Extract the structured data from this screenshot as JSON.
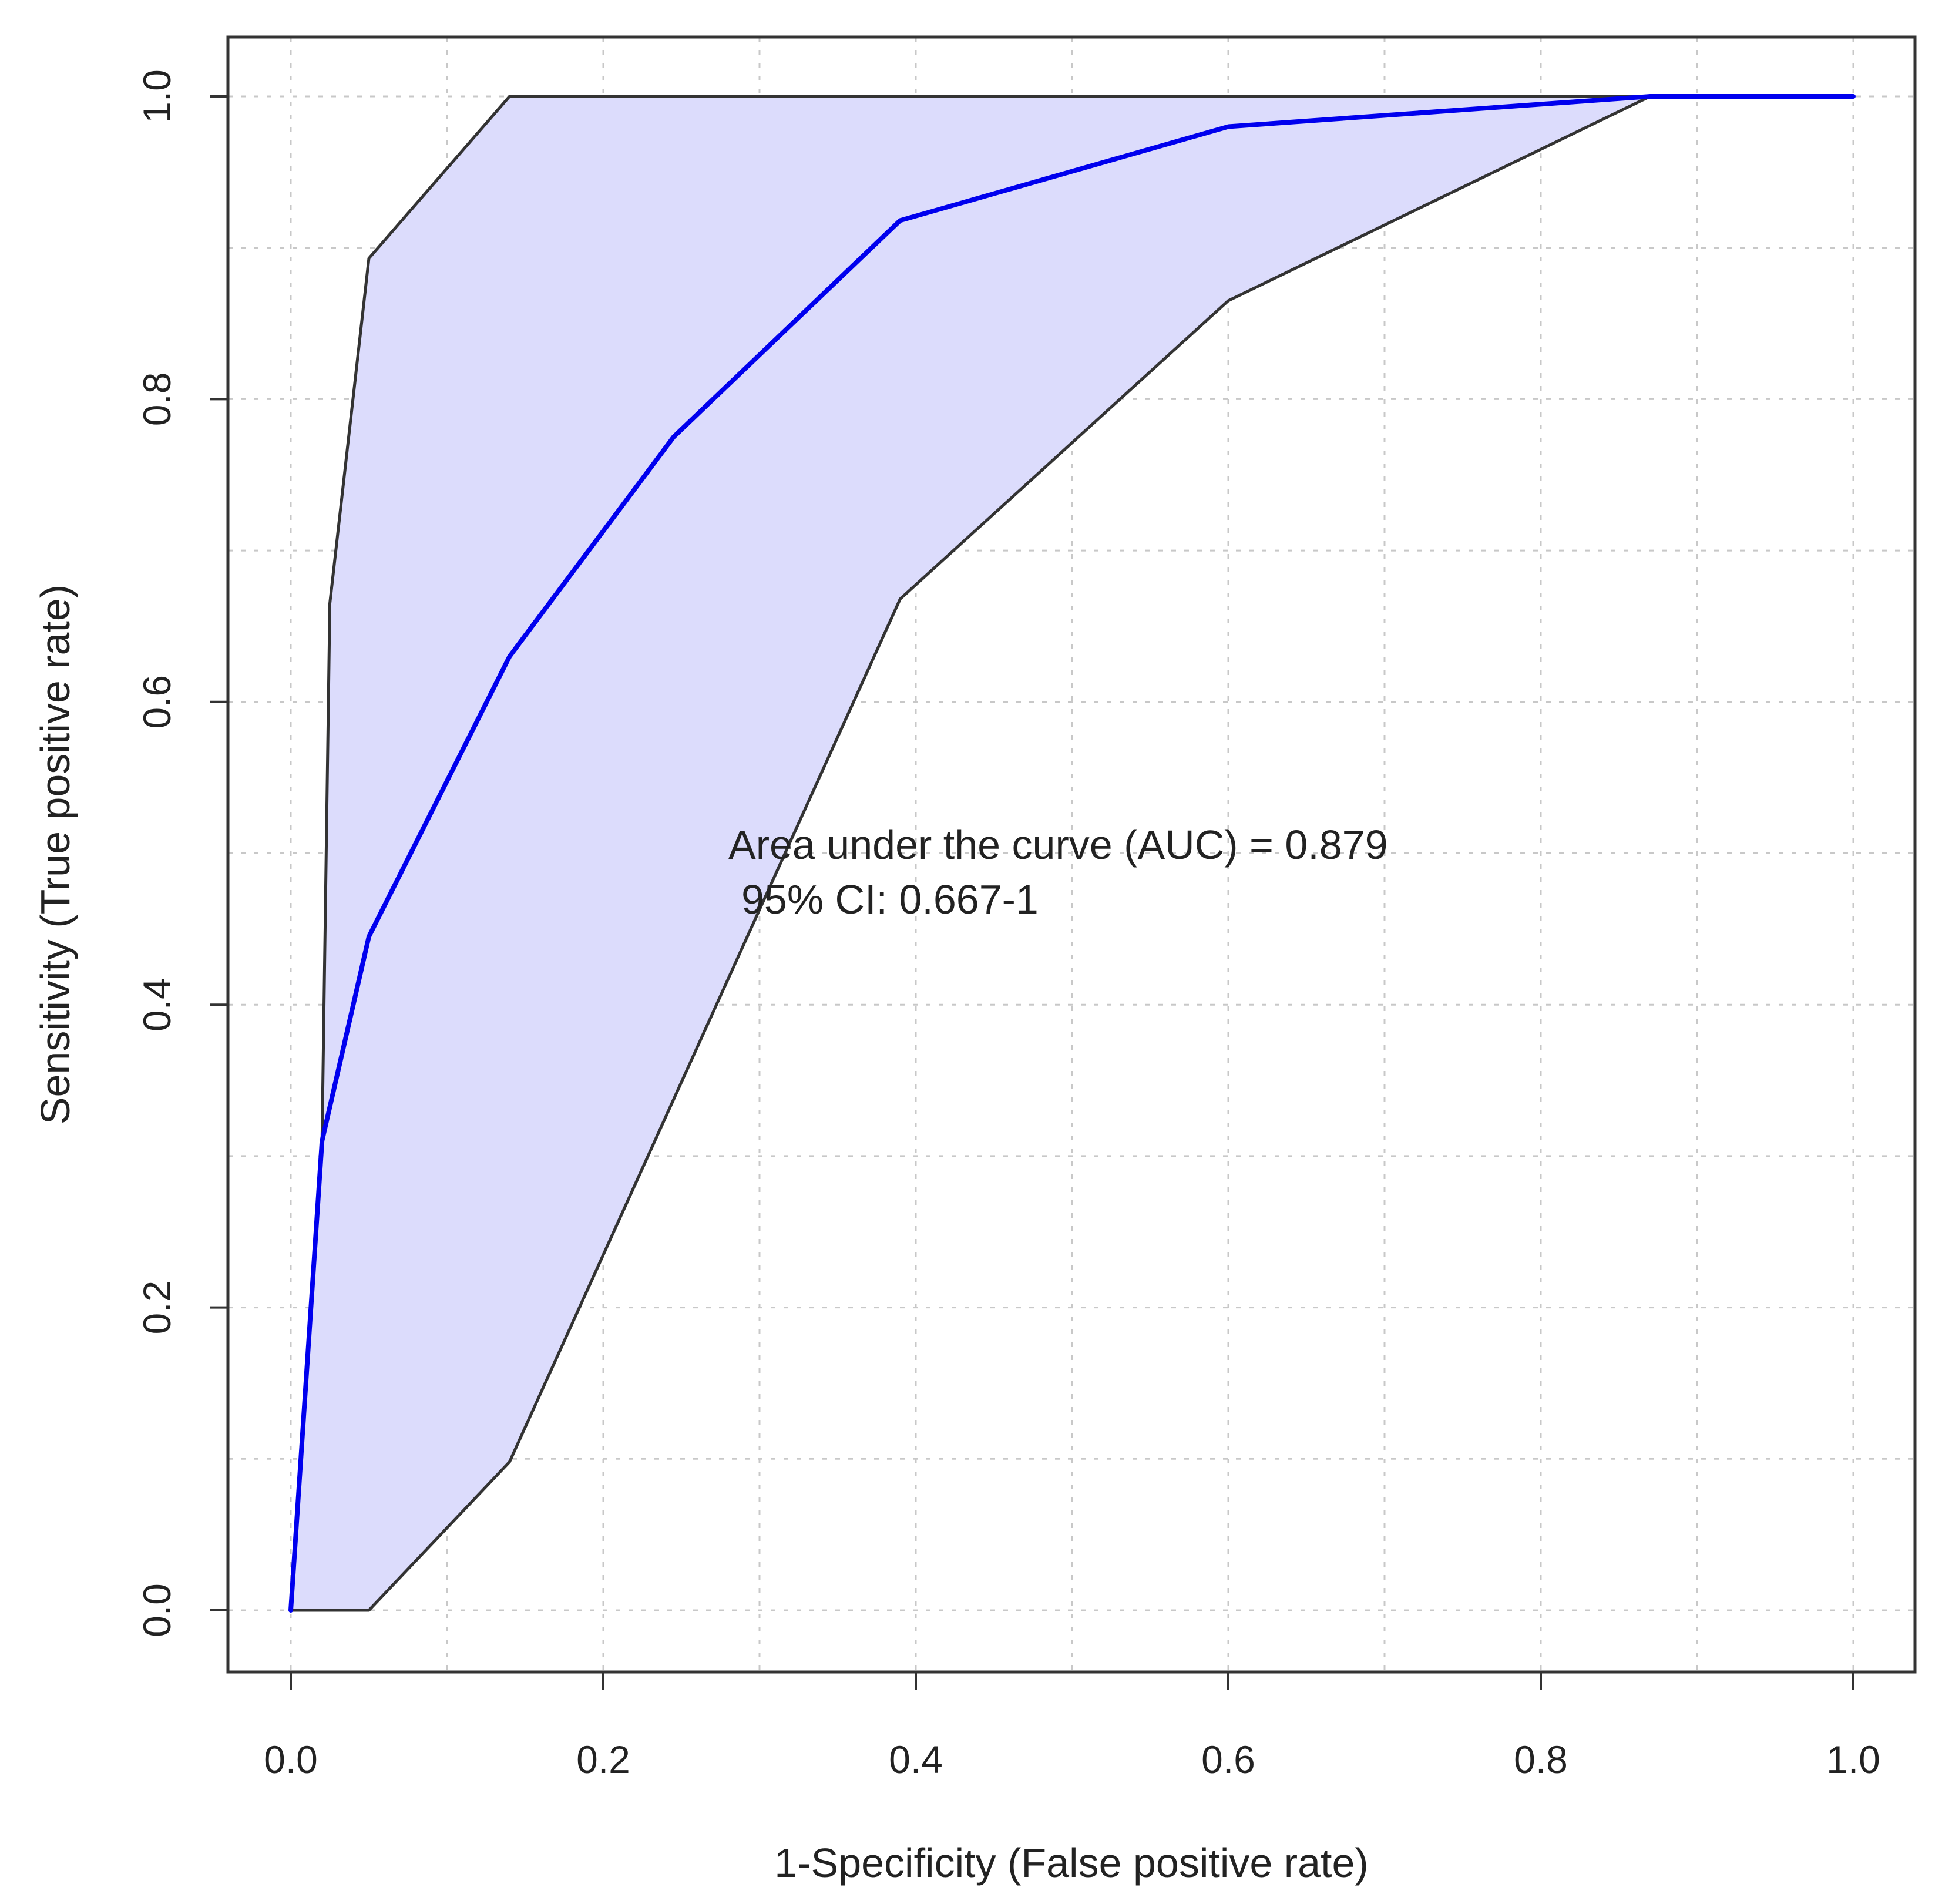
{
  "chart_data": {
    "type": "line",
    "title": "",
    "xlabel": "1-Specificity (False positive rate)",
    "ylabel": "Sensitivity (True positive rate)",
    "xlim": [
      0.0,
      1.0
    ],
    "ylim": [
      0.0,
      1.0
    ],
    "xticks": [
      "0.0",
      "0.2",
      "0.4",
      "0.6",
      "0.8",
      "1.0"
    ],
    "yticks": [
      "0.0",
      "0.2",
      "0.4",
      "0.6",
      "0.8",
      "1.0"
    ],
    "grid": true,
    "series": [
      {
        "role": "roc-curve",
        "color": "#0000ee",
        "points": [
          [
            0.0,
            0.0
          ],
          [
            0.02,
            0.31
          ],
          [
            0.05,
            0.445
          ],
          [
            0.14,
            0.63
          ],
          [
            0.245,
            0.775
          ],
          [
            0.39,
            0.918
          ],
          [
            0.6,
            0.98
          ],
          [
            0.87,
            1.0
          ],
          [
            1.0,
            1.0
          ]
        ]
      },
      {
        "role": "ci-upper",
        "color": "#333333",
        "points": [
          [
            0.0,
            0.0
          ],
          [
            0.02,
            0.31
          ],
          [
            0.025,
            0.665
          ],
          [
            0.05,
            0.893
          ],
          [
            0.14,
            1.0
          ],
          [
            1.0,
            1.0
          ]
        ]
      },
      {
        "role": "ci-lower",
        "color": "#333333",
        "points": [
          [
            0.0,
            0.0
          ],
          [
            0.05,
            0.0
          ],
          [
            0.14,
            0.098
          ],
          [
            0.39,
            0.668
          ],
          [
            0.6,
            0.865
          ],
          [
            0.87,
            1.0
          ],
          [
            1.0,
            1.0
          ]
        ]
      }
    ],
    "ci_fill_color": "#dcdcfc",
    "annotation": {
      "line1": "Area under the curve (AUC) = 0.879",
      "line2": "95% CI: 0.667-1"
    }
  }
}
